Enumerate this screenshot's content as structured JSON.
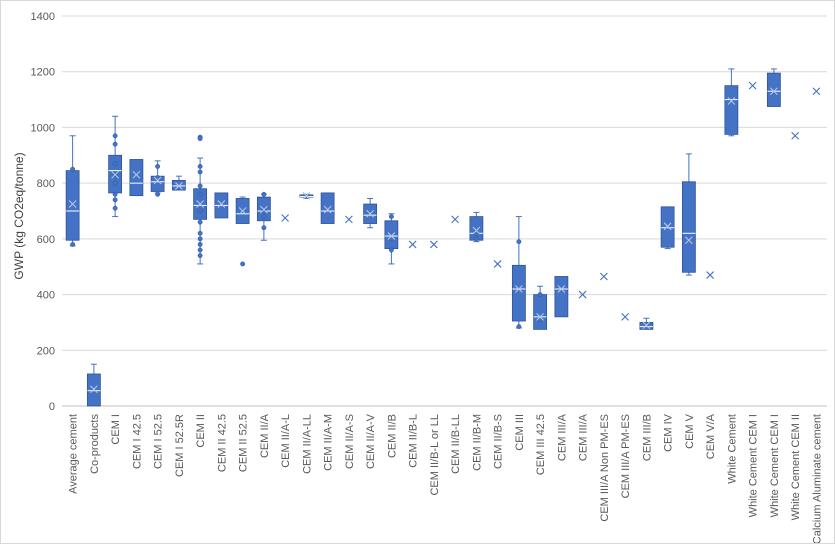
{
  "chart_data": {
    "type": "box",
    "title": "",
    "xlabel": "",
    "ylabel": "GWP (kg CO2eq/tonne)",
    "ylim": [
      0,
      1400
    ],
    "yticks": [
      0,
      200,
      400,
      600,
      800,
      1000,
      1200,
      1400
    ],
    "grid": true,
    "colors": {
      "box": "#4472c4",
      "edge": "#2f5597",
      "grid": "#d9d9d9",
      "axis_text": "#595959"
    },
    "categories": [
      "Average cement",
      "Co-products",
      "CEM I",
      "CEM I 42.5",
      "CEM I 52.5",
      "CEM I 52.5R",
      "CEM II",
      "CEM II 42.5",
      "CEM II 52.5",
      "CEM II/A",
      "CEM II/A-L",
      "CEM II/A-LL",
      "CEM II/A-M",
      "CEM II/A-S",
      "CEM II/A-V",
      "CEM II/B",
      "CEM II/B-L",
      "CEM II/B-L or LL",
      "CEM II/B-LL",
      "CEM II/B-M",
      "CEM II/B-S",
      "CEM III",
      "CEM III 42.5",
      "CEM III/A",
      "CEM III/A",
      "CEM III/A Non PM-ES",
      "CEM III/A PM-ES",
      "CEM III/B",
      "CEM IV",
      "CEM V",
      "CEM V/A",
      "White Cement",
      "White Cement CEM I",
      "White Cement CEM I",
      "White Cement CEM II",
      "Calcium Aluminate cement"
    ],
    "series": [
      {
        "min": 575,
        "q1": 595,
        "median": 700,
        "q3": 845,
        "max": 970,
        "mean": 725,
        "outliers": [
          850,
          580
        ]
      },
      {
        "min": 0,
        "q1": 0,
        "median": 55,
        "q3": 115,
        "max": 150,
        "mean": 60,
        "outliers": []
      },
      {
        "min": 680,
        "q1": 765,
        "median": 845,
        "q3": 900,
        "max": 1040,
        "mean": 830,
        "outliers": [
          970,
          940,
          870,
          830,
          800,
          760,
          740,
          710
        ]
      },
      {
        "min": 755,
        "q1": 755,
        "median": 800,
        "q3": 885,
        "max": 885,
        "mean": 830,
        "outliers": []
      },
      {
        "min": 765,
        "q1": 770,
        "median": 805,
        "q3": 825,
        "max": 880,
        "mean": 810,
        "outliers": [
          860,
          820,
          760
        ]
      },
      {
        "min": 775,
        "q1": 775,
        "median": 790,
        "q3": 810,
        "max": 825,
        "mean": 790,
        "outliers": []
      },
      {
        "min": 510,
        "q1": 670,
        "median": 720,
        "q3": 780,
        "max": 890,
        "mean": 725,
        "outliers": [
          965,
          960,
          860,
          840,
          790,
          760,
          700,
          660,
          620,
          600,
          580,
          560,
          540
        ]
      },
      {
        "min": 675,
        "q1": 675,
        "median": 720,
        "q3": 765,
        "max": 765,
        "mean": 725,
        "outliers": []
      },
      {
        "min": 655,
        "q1": 655,
        "median": 690,
        "q3": 745,
        "max": 750,
        "mean": 700,
        "outliers": [
          510
        ]
      },
      {
        "min": 595,
        "q1": 665,
        "median": 700,
        "q3": 750,
        "max": 760,
        "mean": 705,
        "outliers": [
          760,
          700,
          680,
          640
        ]
      },
      {
        "min": 675,
        "q1": 675,
        "median": 675,
        "q3": 675,
        "max": 675,
        "mean": 675,
        "outliers": []
      },
      {
        "min": 745,
        "q1": 750,
        "median": 752,
        "q3": 758,
        "max": 760,
        "mean": 755,
        "outliers": []
      },
      {
        "min": 655,
        "q1": 655,
        "median": 700,
        "q3": 765,
        "max": 765,
        "mean": 705,
        "outliers": []
      },
      {
        "min": 670,
        "q1": 670,
        "median": 670,
        "q3": 670,
        "max": 670,
        "mean": 670,
        "outliers": []
      },
      {
        "min": 640,
        "q1": 655,
        "median": 685,
        "q3": 725,
        "max": 745,
        "mean": 690,
        "outliers": []
      },
      {
        "min": 510,
        "q1": 565,
        "median": 610,
        "q3": 665,
        "max": 690,
        "mean": 610,
        "outliers": [
          680,
          600,
          560
        ]
      },
      {
        "min": 580,
        "q1": 580,
        "median": 580,
        "q3": 580,
        "max": 580,
        "mean": 580,
        "outliers": []
      },
      {
        "min": 580,
        "q1": 580,
        "median": 580,
        "q3": 580,
        "max": 580,
        "mean": 580,
        "outliers": []
      },
      {
        "min": 670,
        "q1": 670,
        "median": 670,
        "q3": 670,
        "max": 670,
        "mean": 670,
        "outliers": []
      },
      {
        "min": 590,
        "q1": 595,
        "median": 620,
        "q3": 680,
        "max": 695,
        "mean": 630,
        "outliers": [
          620,
          600
        ]
      },
      {
        "min": 510,
        "q1": 510,
        "median": 510,
        "q3": 510,
        "max": 510,
        "mean": 510,
        "outliers": []
      },
      {
        "min": 280,
        "q1": 305,
        "median": 420,
        "q3": 505,
        "max": 680,
        "mean": 420,
        "outliers": [
          590,
          285
        ]
      },
      {
        "min": 275,
        "q1": 275,
        "median": 320,
        "q3": 400,
        "max": 430,
        "mean": 320,
        "outliers": [
          400,
          310
        ]
      },
      {
        "min": 320,
        "q1": 320,
        "median": 420,
        "q3": 465,
        "max": 465,
        "mean": 420,
        "outliers": []
      },
      {
        "min": 400,
        "q1": 400,
        "median": 400,
        "q3": 400,
        "max": 400,
        "mean": 400,
        "outliers": []
      },
      {
        "min": 465,
        "q1": 465,
        "median": 465,
        "q3": 465,
        "max": 465,
        "mean": 465,
        "outliers": []
      },
      {
        "min": 320,
        "q1": 320,
        "median": 320,
        "q3": 320,
        "max": 320,
        "mean": 320,
        "outliers": []
      },
      {
        "min": 275,
        "q1": 275,
        "median": 285,
        "q3": 300,
        "max": 315,
        "mean": 290,
        "outliers": []
      },
      {
        "min": 565,
        "q1": 570,
        "median": 640,
        "q3": 715,
        "max": 715,
        "mean": 645,
        "outliers": []
      },
      {
        "min": 470,
        "q1": 480,
        "median": 620,
        "q3": 805,
        "max": 905,
        "mean": 595,
        "outliers": []
      },
      {
        "min": 470,
        "q1": 470,
        "median": 470,
        "q3": 470,
        "max": 470,
        "mean": 470,
        "outliers": []
      },
      {
        "min": 970,
        "q1": 975,
        "median": 1100,
        "q3": 1150,
        "max": 1210,
        "mean": 1095,
        "outliers": []
      },
      {
        "min": 1150,
        "q1": 1150,
        "median": 1150,
        "q3": 1150,
        "max": 1150,
        "mean": 1150,
        "outliers": []
      },
      {
        "min": 1075,
        "q1": 1075,
        "median": 1130,
        "q3": 1195,
        "max": 1210,
        "mean": 1130,
        "outliers": []
      },
      {
        "min": 970,
        "q1": 970,
        "median": 970,
        "q3": 970,
        "max": 970,
        "mean": 970,
        "outliers": []
      },
      {
        "min": 1130,
        "q1": 1130,
        "median": 1130,
        "q3": 1130,
        "max": 1130,
        "mean": 1130,
        "outliers": []
      }
    ]
  }
}
